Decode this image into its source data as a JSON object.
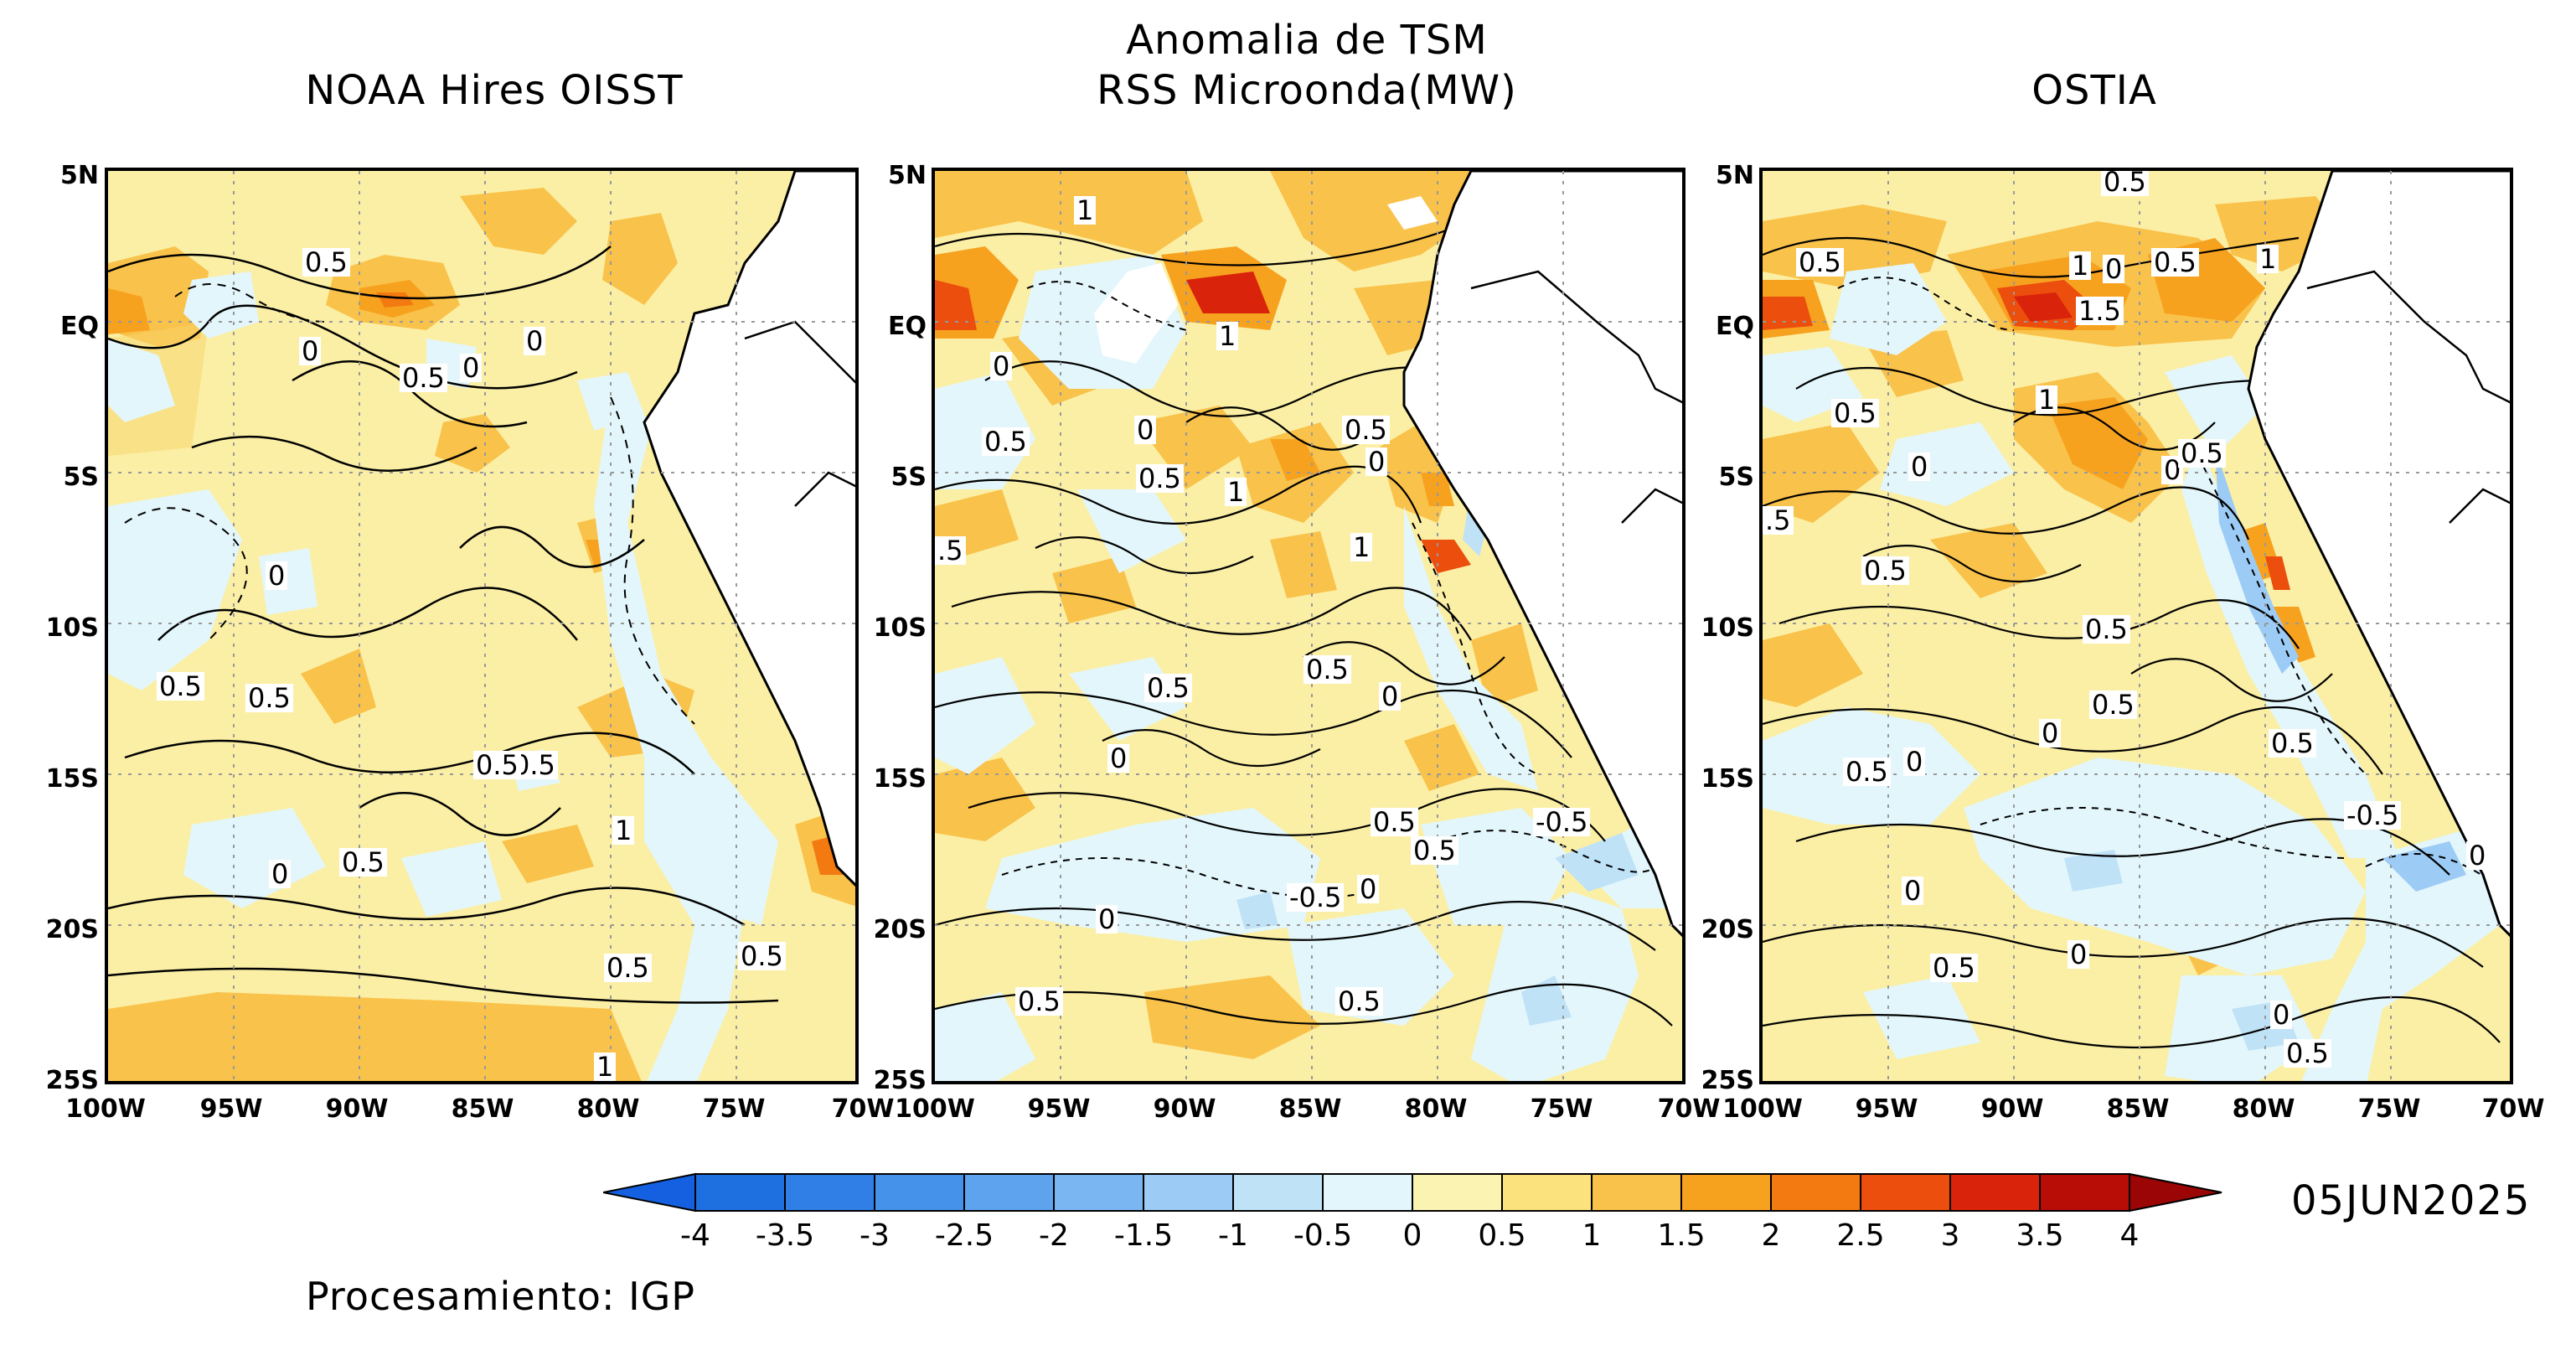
{
  "main_title": [
    "Anomalia de TSM",
    "RSS Microonda(MW)"
  ],
  "panels": [
    {
      "title": "NOAA Hires OISST"
    },
    {
      "title": "RSS Microonda(MW)"
    },
    {
      "title": "OSTIA"
    }
  ],
  "lat_labels": [
    "5N",
    "EQ",
    "5S",
    "10S",
    "15S",
    "20S",
    "25S"
  ],
  "lon_labels": [
    "100W",
    "95W",
    "90W",
    "85W",
    "80W",
    "75W",
    "70W"
  ],
  "contour_labels": {
    "p1": [
      "0.5",
      "0",
      "0.5",
      "0",
      "0",
      "0",
      "0.5",
      "0.5",
      "0.5",
      "0.5",
      "1",
      "0",
      "0.5",
      "0.5",
      "0.5",
      "1"
    ],
    "p2": [
      "1",
      "1",
      "0",
      "0.5",
      "0",
      "0.5",
      "1",
      ".5",
      "1",
      "0.5",
      "0",
      "0.5",
      "0",
      "0.5",
      "-0.5",
      "0",
      "0.5",
      "-0.5",
      "0",
      "0.5",
      "0.5",
      "0.5",
      "0"
    ],
    "p3": [
      "0.5",
      "0.5",
      "1",
      "0",
      "0.5",
      "1",
      "1.5",
      "0.5",
      "1",
      "0",
      "0",
      "0.5",
      ".5",
      "0.5",
      "0.5",
      "0.5",
      "0",
      "0.5",
      "0",
      "0.5",
      "-0.5",
      "0",
      "0",
      "0.5",
      "0",
      "0",
      "0.5"
    ]
  },
  "colorbar": {
    "ticks": [
      "-4",
      "-3.5",
      "-3",
      "-2.5",
      "-2",
      "-1.5",
      "-1",
      "-0.5",
      "0",
      "0.5",
      "1",
      "1.5",
      "2",
      "2.5",
      "3",
      "3.5",
      "4"
    ],
    "colors": [
      "#1e6fe0",
      "#2f7fe6",
      "#4592ea",
      "#5da3ee",
      "#7ab6f2",
      "#9ccbf5",
      "#bfe2f7",
      "#e3f6fb",
      "#fbf3b2",
      "#fbe27d",
      "#f9c24a",
      "#f7a21f",
      "#f27a10",
      "#ec4e0d",
      "#d9230a",
      "#b80d06"
    ],
    "under_color": "#1560e0",
    "over_color": "#9b0505"
  },
  "date": "05JUN2025",
  "credit": "Procesamiento: IGP",
  "land_color": "#ffffff",
  "ocean_base_color": "#fbefa5"
}
